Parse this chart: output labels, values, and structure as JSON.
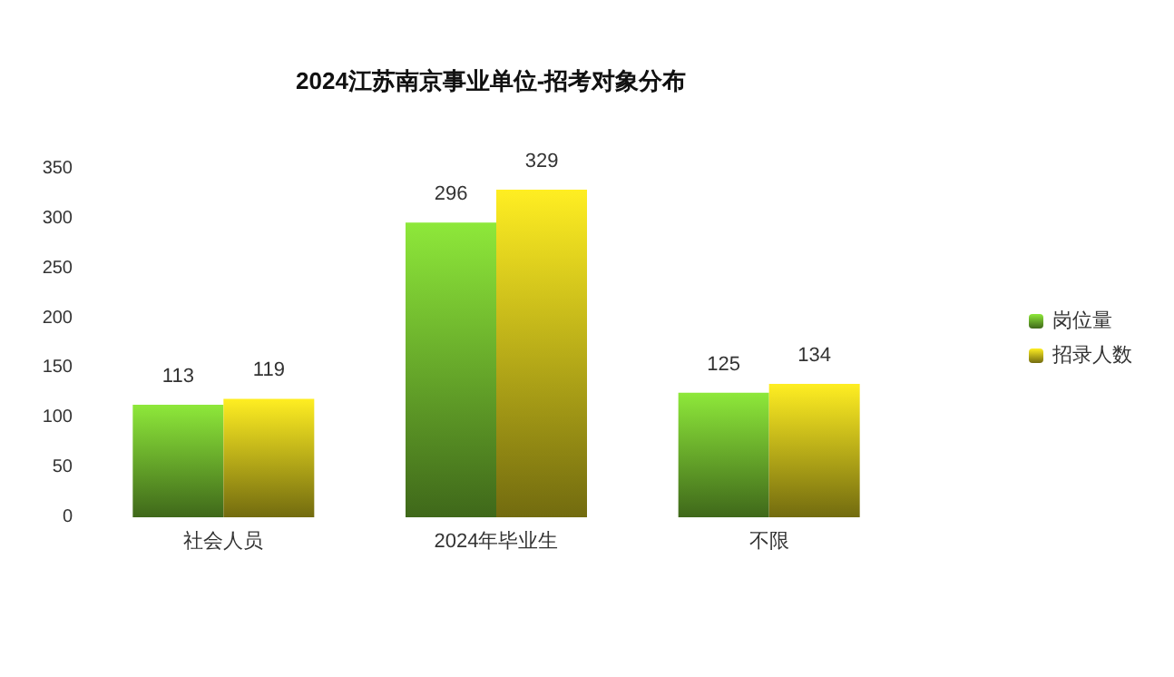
{
  "chart_data": {
    "type": "bar",
    "title": "2024江苏南京事业单位-招考对象分布",
    "categories": [
      "社会人员",
      "2024年毕业生",
      "不限"
    ],
    "series": [
      {
        "name": "岗位量",
        "color": "#8ee83a",
        "values": [
          113,
          296,
          125
        ]
      },
      {
        "name": "招录人数",
        "color": "#ffee22",
        "values": [
          119,
          329,
          134
        ]
      }
    ],
    "ylim": [
      0,
      350
    ],
    "yticks": [
      0,
      50,
      100,
      150,
      200,
      250,
      300,
      350
    ],
    "grid": false,
    "legend": "right",
    "data_labels": true
  }
}
